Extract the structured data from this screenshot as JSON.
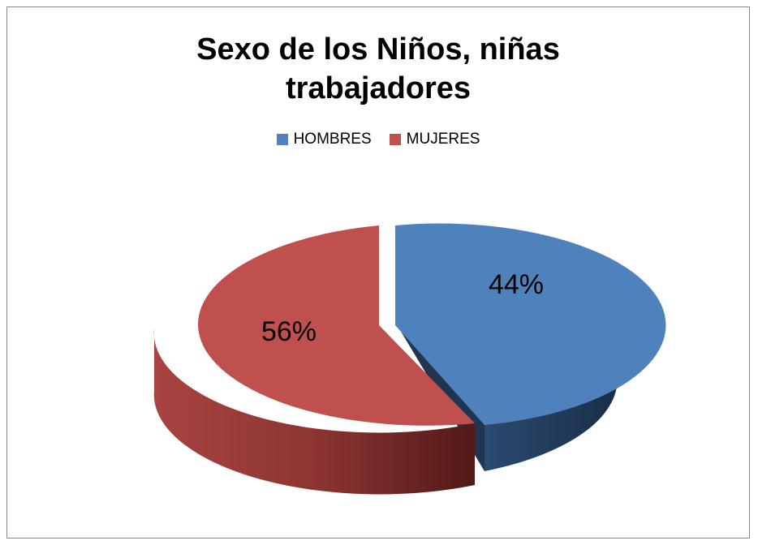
{
  "chart_data": {
    "type": "pie",
    "title": "Sexo de los Niños, niñas trabajadores",
    "title_lines": [
      "Sexo de los Niños, niñas",
      "trabajadores"
    ],
    "legend_position": "top",
    "slices": [
      {
        "label": "HOMBRES",
        "value": 44,
        "display": "44%",
        "color": "#4F81BD",
        "side_color": "#1F3550"
      },
      {
        "label": "MUJERES",
        "value": 56,
        "display": "56%",
        "color": "#C0504D",
        "side_color": "#6B2422"
      }
    ],
    "style": "3d-exploded"
  }
}
